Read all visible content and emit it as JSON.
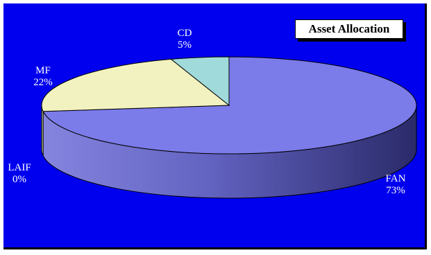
{
  "colors": {
    "background": "#0000ee",
    "fan_top": "#7b7bea",
    "fan_side_light": "#8585e0",
    "fan_side_dark": "#2a2a6a",
    "mf_top": "#f2f2c0",
    "mf_side": "#d8d8a0",
    "cd_top": "#a0dada",
    "laif_top": "#c0c0c0"
  },
  "chart_data": {
    "type": "pie",
    "title": "Asset Allocation",
    "style": "3d",
    "legend": "none",
    "slices": [
      {
        "name": "FAN",
        "value": 73,
        "percent_label": "73%",
        "color": "#7b7bea"
      },
      {
        "name": "LAIF",
        "value": 0,
        "percent_label": "0%",
        "color": "#c0c0c0"
      },
      {
        "name": "MF",
        "value": 22,
        "percent_label": "22%",
        "color": "#f2f2c0"
      },
      {
        "name": "CD",
        "value": 5,
        "percent_label": "5%",
        "color": "#a0dada"
      }
    ]
  }
}
